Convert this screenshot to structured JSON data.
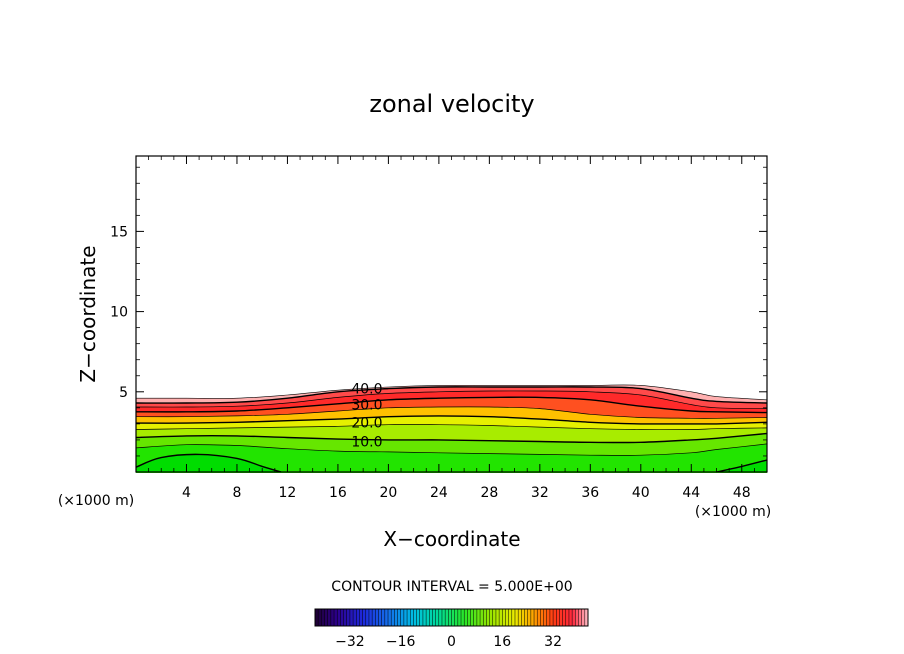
{
  "chart_data": {
    "type": "heatmap",
    "title": "zonal velocity",
    "xlabel": "X−coordinate",
    "ylabel": "Z−coordinate",
    "x_unit": "(×1000 m)",
    "xlim": [
      0,
      50
    ],
    "ylim": [
      0,
      19.7
    ],
    "x_ticks": [
      4,
      8,
      12,
      16,
      20,
      24,
      28,
      32,
      36,
      40,
      44,
      48
    ],
    "x_tick_labels": [
      "4",
      "8",
      "12",
      "16",
      "20",
      "24",
      "28",
      "32",
      "36",
      "40",
      "44",
      "48"
    ],
    "y_ticks": [
      5,
      10,
      15
    ],
    "y_tick_labels": [
      "5",
      "10",
      "15"
    ],
    "x_samples": [
      0,
      4,
      8,
      12,
      16,
      20,
      24,
      28,
      32,
      36,
      40,
      44,
      46,
      50
    ],
    "top_boundary": [
      4.6,
      4.6,
      4.6,
      4.8,
      5.1,
      5.3,
      5.4,
      5.4,
      5.4,
      5.4,
      5.4,
      5.0,
      4.7,
      4.5
    ],
    "contours": [
      {
        "level": 40,
        "label": "40.0",
        "label_at": [
          18.3,
          5.2
        ],
        "z": [
          4.3,
          4.3,
          4.35,
          4.6,
          5.0,
          5.2,
          5.3,
          5.3,
          5.3,
          5.3,
          5.2,
          4.6,
          4.4,
          4.3
        ]
      },
      {
        "level": 35,
        "label": "",
        "z": [
          4.05,
          4.05,
          4.1,
          4.3,
          4.65,
          4.9,
          5.0,
          5.05,
          5.05,
          5.0,
          4.8,
          4.2,
          4.0,
          3.95
        ]
      },
      {
        "level": 30,
        "label": "30.0",
        "label_at": [
          18.3,
          4.2
        ],
        "z": [
          3.75,
          3.75,
          3.8,
          4.0,
          4.25,
          4.5,
          4.6,
          4.65,
          4.65,
          4.5,
          4.1,
          3.8,
          3.75,
          3.7
        ]
      },
      {
        "level": 25,
        "label": "",
        "z": [
          3.45,
          3.45,
          3.5,
          3.6,
          3.8,
          4.0,
          4.05,
          4.05,
          3.95,
          3.6,
          3.4,
          3.35,
          3.35,
          3.4
        ]
      },
      {
        "level": 20,
        "label": "20.0",
        "label_at": [
          18.3,
          3.1
        ],
        "z": [
          3.05,
          3.05,
          3.1,
          3.2,
          3.3,
          3.45,
          3.5,
          3.45,
          3.3,
          3.1,
          3.0,
          3.0,
          3.0,
          3.1
        ]
      },
      {
        "level": 15,
        "label": "",
        "z": [
          2.65,
          2.7,
          2.75,
          2.8,
          2.85,
          2.95,
          2.95,
          2.9,
          2.8,
          2.7,
          2.65,
          2.65,
          2.7,
          2.75
        ]
      },
      {
        "level": 10,
        "label": "10.0",
        "label_at": [
          18.3,
          1.9
        ],
        "z": [
          2.15,
          2.25,
          2.25,
          2.15,
          2.05,
          2.0,
          2.0,
          1.95,
          1.9,
          1.85,
          1.85,
          2.0,
          2.1,
          2.4
        ]
      },
      {
        "level": 5,
        "label": "",
        "z": [
          1.5,
          1.7,
          1.65,
          1.45,
          1.3,
          1.25,
          1.2,
          1.15,
          1.1,
          1.05,
          1.05,
          1.2,
          1.4,
          1.75
        ]
      },
      {
        "level": 0,
        "label": "",
        "x": [
          0,
          2,
          5,
          8,
          10,
          11.5
        ],
        "z": [
          0.3,
          0.9,
          1.1,
          0.85,
          0.35,
          0.0
        ],
        "x2": [
          46,
          48,
          50
        ],
        "z2": [
          0.0,
          0.35,
          0.75
        ]
      }
    ],
    "colorbar": {
      "caption": "CONTOUR INTERVAL = 5.000E+00",
      "range": [
        -43,
        43
      ],
      "ticks": [
        -32,
        -16,
        0,
        16,
        32
      ],
      "tick_labels": [
        "−32",
        "−16",
        "0",
        "16",
        "32"
      ]
    }
  },
  "colors": {
    "v0": "#00e600",
    "v10": "#66e600",
    "v20": "#e6f000",
    "v25": "#ffc000",
    "v30": "#ff5020",
    "v35": "#ff2a2a",
    "v40": "#ff4a4a",
    "v45": "#ffb0b0"
  }
}
